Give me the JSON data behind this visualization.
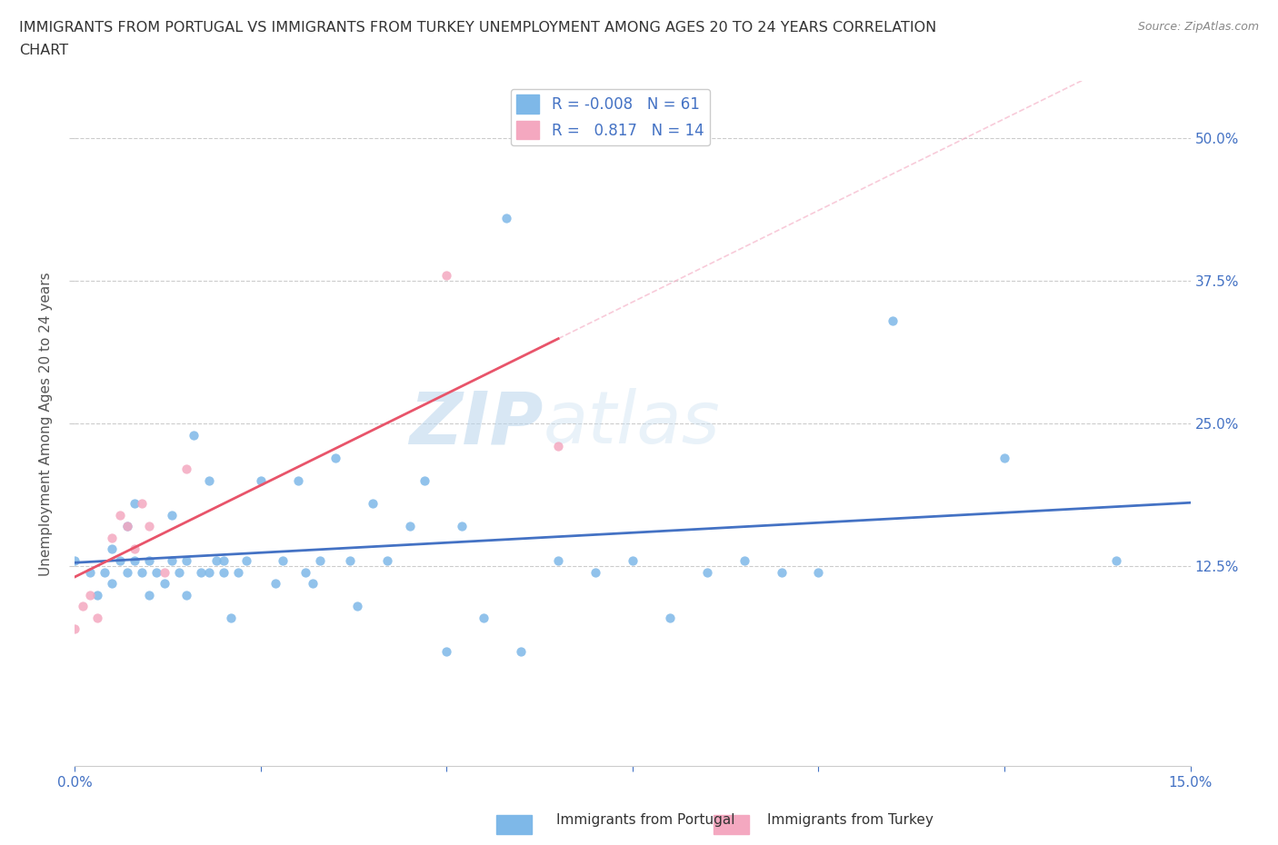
{
  "title": "IMMIGRANTS FROM PORTUGAL VS IMMIGRANTS FROM TURKEY UNEMPLOYMENT AMONG AGES 20 TO 24 YEARS CORRELATION\nCHART",
  "source": "Source: ZipAtlas.com",
  "ylabel": "Unemployment Among Ages 20 to 24 years",
  "xlim": [
    0.0,
    0.15
  ],
  "ylim": [
    -0.05,
    0.55
  ],
  "ytick_labels": [
    "12.5%",
    "25.0%",
    "37.5%",
    "50.0%"
  ],
  "ytick_positions": [
    0.125,
    0.25,
    0.375,
    0.5
  ],
  "r_portugal": -0.008,
  "n_portugal": 61,
  "r_turkey": 0.817,
  "n_turkey": 14,
  "portugal_color": "#7EB8E8",
  "turkey_color": "#F4A8C0",
  "trend_portugal_color": "#4472C4",
  "trend_turkey_color": "#E8546A",
  "trend_diagonal_color": "#F4A8C0",
  "background_color": "#FFFFFF",
  "watermark_zip": "ZIP",
  "watermark_atlas": "atlas",
  "portugal_scatter_x": [
    0.0,
    0.002,
    0.003,
    0.004,
    0.005,
    0.005,
    0.006,
    0.007,
    0.007,
    0.008,
    0.008,
    0.009,
    0.01,
    0.01,
    0.011,
    0.012,
    0.013,
    0.013,
    0.014,
    0.015,
    0.015,
    0.016,
    0.017,
    0.018,
    0.018,
    0.019,
    0.02,
    0.02,
    0.021,
    0.022,
    0.023,
    0.025,
    0.027,
    0.028,
    0.03,
    0.031,
    0.032,
    0.033,
    0.035,
    0.037,
    0.038,
    0.04,
    0.042,
    0.045,
    0.047,
    0.05,
    0.052,
    0.055,
    0.058,
    0.06,
    0.065,
    0.07,
    0.075,
    0.08,
    0.085,
    0.09,
    0.095,
    0.1,
    0.11,
    0.125,
    0.14
  ],
  "portugal_scatter_y": [
    0.13,
    0.12,
    0.1,
    0.12,
    0.11,
    0.14,
    0.13,
    0.16,
    0.12,
    0.13,
    0.18,
    0.12,
    0.13,
    0.1,
    0.12,
    0.11,
    0.13,
    0.17,
    0.12,
    0.13,
    0.1,
    0.24,
    0.12,
    0.2,
    0.12,
    0.13,
    0.12,
    0.13,
    0.08,
    0.12,
    0.13,
    0.2,
    0.11,
    0.13,
    0.2,
    0.12,
    0.11,
    0.13,
    0.22,
    0.13,
    0.09,
    0.18,
    0.13,
    0.16,
    0.2,
    0.05,
    0.16,
    0.08,
    0.43,
    0.05,
    0.13,
    0.12,
    0.13,
    0.08,
    0.12,
    0.13,
    0.12,
    0.12,
    0.34,
    0.22,
    0.13
  ],
  "turkey_scatter_x": [
    0.0,
    0.001,
    0.002,
    0.003,
    0.005,
    0.006,
    0.007,
    0.008,
    0.009,
    0.01,
    0.012,
    0.015,
    0.05,
    0.065
  ],
  "turkey_scatter_y": [
    0.07,
    0.09,
    0.1,
    0.08,
    0.15,
    0.17,
    0.16,
    0.14,
    0.18,
    0.16,
    0.12,
    0.21,
    0.38,
    0.23
  ],
  "trend_turkey_x_start": 0.0,
  "trend_turkey_x_end": 0.065,
  "trend_diagonal_x_start": 0.065,
  "trend_diagonal_x_end": 0.15
}
